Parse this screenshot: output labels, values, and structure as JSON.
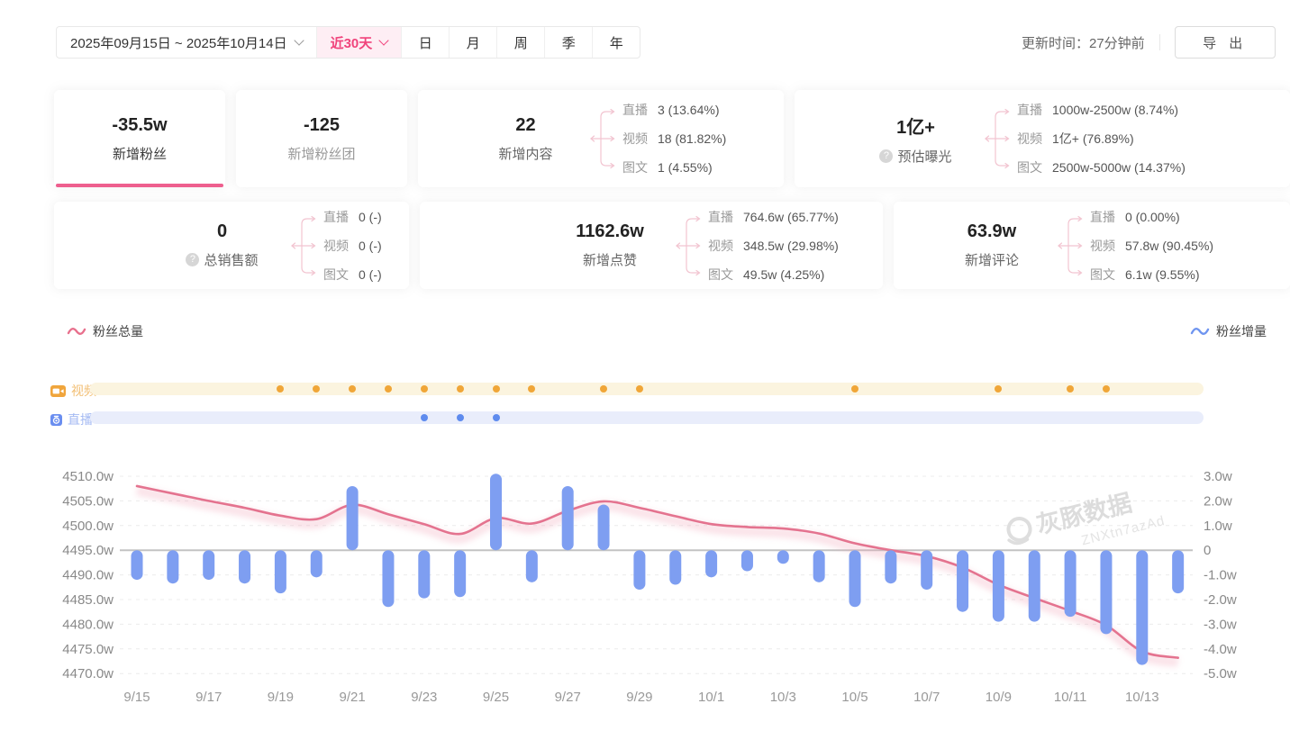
{
  "topbar": {
    "date_range": "2025年09月15日 ~ 2025年10月14日",
    "quick_range": "近30天",
    "period_tabs": [
      "日",
      "月",
      "周",
      "季",
      "年"
    ],
    "update_time": "更新时间：27分钟前",
    "export_label": "导 出"
  },
  "stats": {
    "cards": [
      {
        "value": "-35.5w",
        "label": "新增粉丝",
        "selected": true
      },
      {
        "value": "-125",
        "label": "新增粉丝团"
      },
      {
        "value": "22",
        "label": "新增内容",
        "breakdown": [
          {
            "name": "直播",
            "value": "3 (13.64%)"
          },
          {
            "name": "视频",
            "value": "18 (81.82%)"
          },
          {
            "name": "图文",
            "value": "1 (4.55%)"
          }
        ]
      },
      {
        "value": "1亿+",
        "label": "预估曝光",
        "help": true,
        "breakdown": [
          {
            "name": "直播",
            "value": "1000w-2500w (8.74%)"
          },
          {
            "name": "视频",
            "value": "1亿+ (76.89%)"
          },
          {
            "name": "图文",
            "value": "2500w-5000w (14.37%)"
          }
        ]
      },
      {
        "value": "0",
        "label": "总销售额",
        "help": true,
        "breakdown": [
          {
            "name": "直播",
            "value": "0 (-)"
          },
          {
            "name": "视频",
            "value": "0 (-)"
          },
          {
            "name": "图文",
            "value": "0 (-)"
          }
        ]
      },
      {
        "value": "1162.6w",
        "label": "新增点赞",
        "breakdown": [
          {
            "name": "直播",
            "value": "764.6w (65.77%)"
          },
          {
            "name": "视频",
            "value": "348.5w (29.98%)"
          },
          {
            "name": "图文",
            "value": "49.5w (4.25%)"
          }
        ]
      },
      {
        "value": "63.9w",
        "label": "新增评论",
        "breakdown": [
          {
            "name": "直播",
            "value": "0 (0.00%)"
          },
          {
            "name": "视频",
            "value": "57.8w (90.45%)"
          },
          {
            "name": "图文",
            "value": "6.1w (9.55%)"
          }
        ]
      }
    ]
  },
  "chart_data": {
    "type": "combo",
    "x": [
      "9/15",
      "9/16",
      "9/17",
      "9/18",
      "9/19",
      "9/20",
      "9/21",
      "9/22",
      "9/23",
      "9/24",
      "9/25",
      "9/26",
      "9/27",
      "9/28",
      "9/29",
      "9/30",
      "10/1",
      "10/2",
      "10/3",
      "10/4",
      "10/5",
      "10/6",
      "10/7",
      "10/8",
      "10/9",
      "10/10",
      "10/11",
      "10/12",
      "10/13",
      "10/14"
    ],
    "x_tick_labels": [
      "9/15",
      "9/17",
      "9/19",
      "9/21",
      "9/23",
      "9/25",
      "9/27",
      "9/29",
      "10/1",
      "10/3",
      "10/5",
      "10/7",
      "10/9",
      "10/11",
      "10/13"
    ],
    "series": [
      {
        "name": "粉丝总量",
        "type": "line",
        "axis": "left",
        "color": "#e4738f",
        "values": [
          4508.0,
          4506.5,
          4505.0,
          4503.6,
          4502.0,
          4501.3,
          4504.2,
          4502.3,
          4500.3,
          4498.3,
          4501.5,
          4500.4,
          4503.0,
          4504.9,
          4503.6,
          4501.9,
          4500.3,
          4499.7,
          4499.4,
          4498.4,
          4496.4,
          4495.0,
          4493.8,
          4491.5,
          4488.0,
          4485.3,
          4482.7,
          4479.8,
          4474.5,
          4473.2
        ]
      },
      {
        "name": "粉丝增量",
        "type": "bar",
        "axis": "right",
        "color": "#7e9ef1",
        "values": [
          -1.2,
          -1.35,
          -1.2,
          -1.35,
          -1.75,
          -1.1,
          2.6,
          -2.3,
          -1.95,
          -1.9,
          3.1,
          -1.3,
          2.6,
          1.85,
          -1.6,
          -1.4,
          -1.1,
          -0.85,
          -0.55,
          -1.3,
          -2.3,
          -1.35,
          -1.6,
          -2.5,
          -2.9,
          -2.9,
          -2.7,
          -3.4,
          -4.65,
          -1.75
        ]
      }
    ],
    "left_axis": {
      "ticks": [
        "4510.0w",
        "4505.0w",
        "4500.0w",
        "4495.0w",
        "4490.0w",
        "4485.0w",
        "4480.0w",
        "4475.0w",
        "4470.0w"
      ],
      "max": 4510,
      "min": 4470,
      "unit": "w"
    },
    "right_axis": {
      "ticks": [
        "3.0w",
        "2.0w",
        "1.0w",
        "0",
        "-1.0w",
        "-2.0w",
        "-3.0w",
        "-4.0w",
        "-5.0w"
      ],
      "max": 3,
      "min": -5,
      "unit": "w"
    },
    "markers": {
      "video": {
        "label": "视频",
        "days": [
          "9/19",
          "9/20",
          "9/21",
          "9/22",
          "9/23",
          "9/24",
          "9/25",
          "9/26",
          "9/28",
          "9/29",
          "10/5",
          "10/9",
          "10/11",
          "10/12"
        ]
      },
      "live": {
        "label": "直播",
        "days": [
          "9/23",
          "9/24",
          "9/25"
        ]
      }
    },
    "legend": {
      "left": "粉丝总量",
      "right": "粉丝增量"
    },
    "watermark": {
      "brand": "灰豚数据",
      "code": "ZNXtn7azAd"
    }
  }
}
